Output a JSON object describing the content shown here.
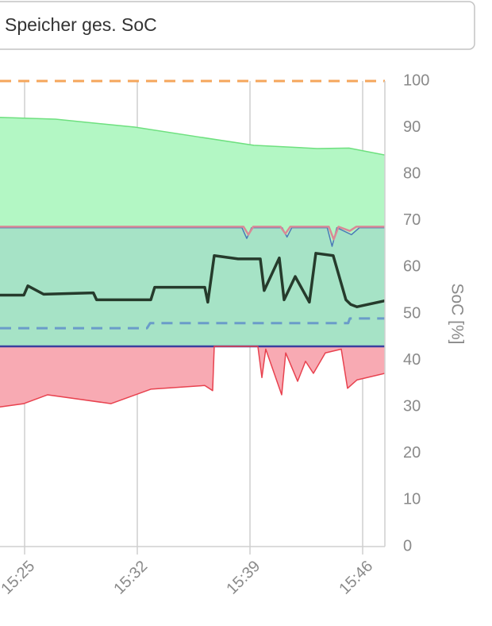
{
  "header": {
    "title": "Speicher ges. SoC"
  },
  "chart_data": {
    "type": "line",
    "y_label": "SoC [%]",
    "xlim": [
      923.47,
      947.38
    ],
    "xticks": [
      {
        "value": 925,
        "label": "15:25"
      },
      {
        "value": 932,
        "label": "15:32"
      },
      {
        "value": 939,
        "label": "15:39"
      },
      {
        "value": 946,
        "label": "15:46"
      }
    ],
    "ylim": [
      0,
      100
    ],
    "yticks": [
      0,
      10,
      20,
      30,
      40,
      50,
      60,
      70,
      80,
      90,
      100
    ],
    "grid": true,
    "series": [
      {
        "color": "#6ee07f",
        "style": "area",
        "fill": "#b3f7c4",
        "fill_to": 5,
        "x": [
          923.47,
          926.92,
          931.85,
          935.79,
          939.24,
          943.18,
          945.15,
          947.38
        ],
        "values": [
          92.2,
          91.8,
          90.1,
          88,
          86.2,
          85.5,
          85.6,
          84.1
        ]
      },
      {
        "color": "#4a78b8",
        "style": "area",
        "fill": "#a6e3c6",
        "fill_to": 5,
        "x": [
          923.47,
          938.5,
          938.8,
          939.1,
          941,
          941.3,
          941.6,
          943.8,
          944.1,
          944.4,
          945.3,
          945.8,
          947.38
        ],
        "values": [
          68.5,
          68.5,
          66.2,
          68.5,
          68.5,
          66.5,
          68.5,
          68.5,
          64.5,
          68.5,
          67,
          68.5,
          68.5
        ]
      },
      {
        "color": "#d98a96",
        "style": "line",
        "x": [
          923.47,
          938.6,
          938.9,
          939.2,
          940.9,
          941.2,
          941.5,
          943.9,
          944.2,
          944.5,
          945.2,
          945.6,
          947.38
        ],
        "values": [
          68.7,
          68.7,
          67,
          68.7,
          68.7,
          67.2,
          68.7,
          68.7,
          66,
          68.7,
          67.8,
          68.7,
          68.7
        ]
      },
      {
        "color": "#6a9cc9",
        "style": "dash",
        "x": [
          923.47,
          932.6,
          932.8,
          945.1,
          945.2,
          947.38
        ],
        "values": [
          46.9,
          46.9,
          48,
          48,
          49,
          49
        ]
      },
      {
        "color": "#f5a65b",
        "style": "dash",
        "x": [
          923.47,
          947.38
        ],
        "values": [
          100,
          100
        ]
      },
      {
        "color": "#3b3f9e",
        "style": "line",
        "x": [
          923.47,
          947.38
        ],
        "values": [
          43,
          43
        ]
      },
      {
        "color": "#e8424f",
        "style": "area",
        "fill": "#f8aab3",
        "fill_to": 5,
        "x": [
          923.47,
          924.95,
          926.43,
          930.37,
          932.84,
          936.19,
          936.68,
          936.78,
          939.49,
          939.74,
          939.98,
          940.97,
          941.22,
          941.96,
          942.45,
          942.94,
          943.68,
          944.67,
          945.06,
          945.65,
          947.38
        ],
        "values": [
          30,
          30.7,
          32.6,
          30.7,
          33.8,
          34.6,
          33.5,
          43,
          43,
          36.3,
          42.4,
          32.6,
          41.6,
          35.5,
          39.8,
          37.2,
          41.6,
          42.4,
          34,
          35.8,
          37.2
        ]
      },
      {
        "color": "#263b2c",
        "style": "bold",
        "x": [
          923.47,
          924.95,
          925.2,
          926.18,
          929.27,
          929.47,
          932.84,
          933.08,
          936.19,
          936.38,
          936.78,
          938.26,
          939.64,
          939.88,
          940.82,
          941.12,
          941.81,
          942.69,
          943.09,
          944.17,
          944.96,
          945.26,
          945.65,
          947.38
        ],
        "values": [
          54,
          54,
          56,
          54.2,
          54.5,
          53,
          53,
          55.7,
          55.7,
          52.5,
          62.5,
          61.8,
          61.8,
          55,
          62,
          53,
          58,
          52.5,
          63,
          62.5,
          53,
          52,
          51.5,
          52.8
        ]
      }
    ]
  }
}
